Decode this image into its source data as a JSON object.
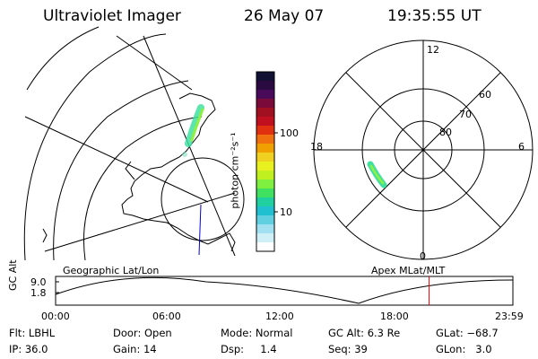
{
  "header": {
    "title": "Ultraviolet Imager",
    "date": "26 May 07",
    "time": "19:35:55 UT"
  },
  "colorbar": {
    "unit_label": "photon cm⁻²s⁻¹",
    "ticks": [
      "100",
      "10"
    ],
    "colors": [
      "#111133",
      "#2a0a40",
      "#4a0a5a",
      "#7a0a3a",
      "#a01020",
      "#c01020",
      "#e03010",
      "#f07010",
      "#f0a000",
      "#f0d020",
      "#e8f020",
      "#c0f020",
      "#80f040",
      "#40e060",
      "#20d0a0",
      "#20c0d0",
      "#60d0e0",
      "#a0e0f0",
      "#d0f0f8",
      "#ffffff"
    ]
  },
  "left_map": {
    "label": "Geographic Lat/Lon"
  },
  "right_map": {
    "label": "Apex MLat/MLT",
    "mlt_labels": {
      "top": "12",
      "left": "18",
      "right": "6",
      "bottom": "0"
    },
    "lat_labels": [
      "60",
      "70",
      "80"
    ]
  },
  "timeline": {
    "axis_title": "GC Alt",
    "y_ticks": [
      "9.0",
      "1.8"
    ],
    "x_ticks": [
      "00:00",
      "06:00",
      "12:00",
      "18:00",
      "23:59"
    ],
    "marker_color": "#ff0000",
    "marker_time_fraction": 0.8166
  },
  "info": {
    "row1": {
      "flt": "Flt: LBHL",
      "door": "Door: Open",
      "mode": "Mode: Normal",
      "gc_alt": "GC Alt: 6.3 Re",
      "glat": "GLat: −68.7"
    },
    "row2": {
      "ip": "IP: 36.0",
      "gain": "Gain: 14",
      "dsp": "Dsp:     1.4",
      "seq": "Seq: 39",
      "glon": "GLon:   3.0"
    }
  }
}
